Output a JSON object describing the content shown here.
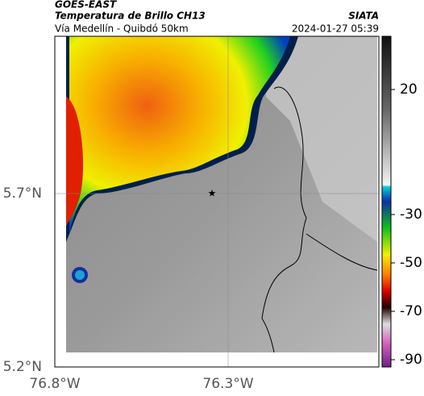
{
  "header": {
    "source": "GOES-EAST",
    "title": "Temperatura de Brillo CH13",
    "agency": "SIATA",
    "subtitle": "Vía Medellín - Quibdó 50km",
    "datetime": "2024-01-27 05:39"
  },
  "axes": {
    "x_labels": [
      "76.8°W",
      "76.3°W"
    ],
    "y_labels": [
      "5.7°N",
      "5.2°N"
    ]
  },
  "colorbar": {
    "ticks": [
      20,
      -30,
      -50,
      -70,
      -90
    ]
  }
}
